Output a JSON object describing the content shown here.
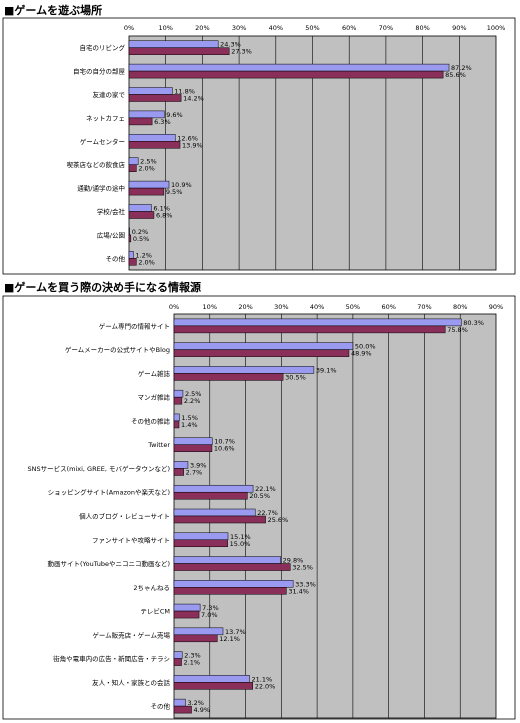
{
  "chart_data": [
    {
      "type": "bar",
      "orientation": "horizontal",
      "title": "■ゲームを遊ぶ場所",
      "categories": [
        "自宅のリビング",
        "自宅の自分の部屋",
        "友達の家で",
        "ネットカフェ",
        "ゲームセンター",
        "喫茶店などの飲食店",
        "通勤/通学の途中",
        "学校/会社",
        "広場/公園",
        "その他"
      ],
      "series": [
        {
          "values": [
            24.3,
            87.2,
            11.8,
            9.6,
            12.6,
            2.5,
            10.9,
            6.1,
            0.2,
            1.2
          ],
          "labels": [
            "24.3%",
            "87.2%",
            "11.8%",
            "9.6%",
            "12.6%",
            "2.5%",
            "10.9%",
            "6.1%",
            "0.2%",
            "1.2%"
          ]
        },
        {
          "values": [
            27.3,
            85.6,
            14.2,
            6.3,
            13.9,
            2.0,
            9.5,
            6.8,
            0.5,
            2.0
          ],
          "labels": [
            "27.3%",
            "85.6%",
            "14.2%",
            "6.3%",
            "13.9%",
            "2.0%",
            "9.5%",
            "6.8%",
            "0.5%",
            "2.0%"
          ]
        }
      ],
      "xlim": [
        0,
        100
      ],
      "ticks": [
        "0%",
        "10%",
        "20%",
        "30%",
        "40%",
        "50%",
        "60%",
        "70%",
        "80%",
        "90%",
        "100%"
      ],
      "grid": true
    },
    {
      "type": "bar",
      "orientation": "horizontal",
      "title": "■ゲームを買う際の決め手になる情報源",
      "categories": [
        "ゲーム専門の情報サイト",
        "ゲームメーカーの公式サイトやBlog",
        "ゲーム雑誌",
        "マンガ雑誌",
        "その他の雑誌",
        "Twitter",
        "SNSサービス(mixi, GREE, モバゲータウンなど)",
        "ショッピングサイト(Amazonや楽天など)",
        "個人のブログ・レビューサイト",
        "ファンサイトや攻略サイト",
        "動画サイト(YouTubeやニコニコ動画など)",
        "2ちゃんねる",
        "テレビCM",
        "ゲーム販売店・ゲーム売場",
        "街角や電車内の広告・新聞広告・チラシ",
        "友人・知人・家族との会話",
        "その他"
      ],
      "series": [
        {
          "values": [
            80.3,
            50.0,
            39.1,
            2.5,
            1.5,
            10.7,
            3.9,
            22.1,
            22.7,
            15.1,
            29.8,
            33.3,
            7.3,
            13.7,
            2.3,
            21.1,
            3.2
          ],
          "labels": [
            "80.3%",
            "50.0%",
            "39.1%",
            "2.5%",
            "1.5%",
            "10.7%",
            "3.9%",
            "22.1%",
            "22.7%",
            "15.1%",
            "29.8%",
            "33.3%",
            "7.3%",
            "13.7%",
            "2.3%",
            "21.1%",
            "3.2%"
          ]
        },
        {
          "values": [
            75.8,
            48.9,
            30.5,
            2.2,
            1.4,
            10.6,
            2.7,
            20.5,
            25.6,
            15.0,
            32.5,
            31.4,
            7.0,
            12.1,
            2.1,
            22.0,
            4.9
          ],
          "labels": [
            "75.8%",
            "48.9%",
            "30.5%",
            "2.2%",
            "1.4%",
            "10.6%",
            "2.7%",
            "20.5%",
            "25.6%",
            "15.0%",
            "32.5%",
            "31.4%",
            "7.0%",
            "12.1%",
            "2.1%",
            "22.0%",
            "4.9%"
          ]
        }
      ],
      "xlim": [
        0,
        90
      ],
      "ticks": [
        "0%",
        "10%",
        "20%",
        "30%",
        "40%",
        "50%",
        "60%",
        "70%",
        "80%",
        "90%"
      ],
      "grid": true
    }
  ],
  "colors": {
    "series1": "#9a9af0",
    "series2": "#8a2f5a",
    "plot_bg": "#c0c0c0"
  }
}
